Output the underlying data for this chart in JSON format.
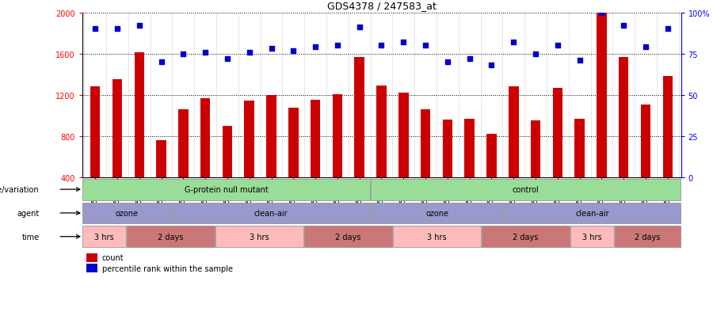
{
  "title": "GDS4378 / 247583_at",
  "samples": [
    "GSM852932",
    "GSM852933",
    "GSM852934",
    "GSM852946",
    "GSM852947",
    "GSM852948",
    "GSM852949",
    "GSM852929",
    "GSM852930",
    "GSM852931",
    "GSM852943",
    "GSM852944",
    "GSM852945",
    "GSM852926",
    "GSM852927",
    "GSM852928",
    "GSM852939",
    "GSM852940",
    "GSM852941",
    "GSM852942",
    "GSM852923",
    "GSM852924",
    "GSM852925",
    "GSM852935",
    "GSM852936",
    "GSM852937",
    "GSM852938"
  ],
  "counts": [
    1280,
    1350,
    1610,
    760,
    1060,
    1170,
    900,
    1145,
    1200,
    1080,
    1150,
    1210,
    1570,
    1290,
    1220,
    1060,
    960,
    970,
    820,
    1285,
    950,
    1270,
    970,
    2000,
    1570,
    1110,
    1380
  ],
  "percentiles": [
    90,
    90,
    92,
    70,
    75,
    76,
    72,
    76,
    78,
    77,
    79,
    80,
    91,
    80,
    82,
    80,
    70,
    72,
    68,
    82,
    75,
    80,
    71,
    100,
    92,
    79,
    90
  ],
  "ylim_left": [
    400,
    2000
  ],
  "ylim_right": [
    0,
    100
  ],
  "left_ticks": [
    400,
    800,
    1200,
    1600,
    2000
  ],
  "right_ticks": [
    0,
    25,
    50,
    75,
    100
  ],
  "bar_color": "#cc0000",
  "dot_color": "#0000cc",
  "geno_data": [
    {
      "label": "G-protein null mutant",
      "start": 0,
      "end": 13
    },
    {
      "label": "control",
      "start": 13,
      "end": 27
    }
  ],
  "geno_color": "#99dd99",
  "agent_data": [
    {
      "label": "ozone",
      "start": 0,
      "end": 4
    },
    {
      "label": "clean-air",
      "start": 4,
      "end": 13
    },
    {
      "label": "ozone",
      "start": 13,
      "end": 19
    },
    {
      "label": "clean-air",
      "start": 19,
      "end": 27
    }
  ],
  "agent_color": "#9999cc",
  "time_data": [
    {
      "label": "3 hrs",
      "start": 0,
      "end": 2,
      "color": "#ffbbbb"
    },
    {
      "label": "2 days",
      "start": 2,
      "end": 6,
      "color": "#cc7777"
    },
    {
      "label": "3 hrs",
      "start": 6,
      "end": 10,
      "color": "#ffbbbb"
    },
    {
      "label": "2 days",
      "start": 10,
      "end": 14,
      "color": "#cc7777"
    },
    {
      "label": "3 hrs",
      "start": 14,
      "end": 18,
      "color": "#ffbbbb"
    },
    {
      "label": "2 days",
      "start": 18,
      "end": 22,
      "color": "#cc7777"
    },
    {
      "label": "3 hrs",
      "start": 22,
      "end": 24,
      "color": "#ffbbbb"
    },
    {
      "label": "2 days",
      "start": 24,
      "end": 27,
      "color": "#cc7777"
    }
  ],
  "legend_count_color": "#cc0000",
  "legend_dot_color": "#0000cc",
  "background_color": "#ffffff"
}
